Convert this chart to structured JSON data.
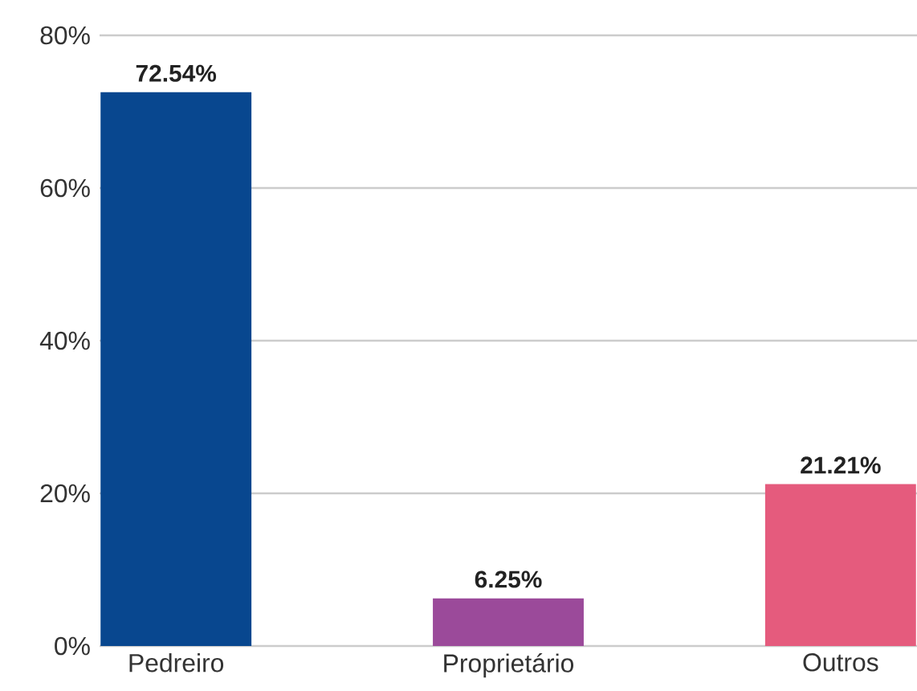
{
  "chart_data": {
    "type": "bar",
    "categories": [
      "Pedreiro",
      "Proprietário",
      "Outros"
    ],
    "values": [
      72.54,
      6.25,
      21.21
    ],
    "colors": [
      "#08478f",
      "#9b4a9a",
      "#e55b7d"
    ],
    "value_labels": [
      "72.54%",
      "6.25%",
      "21.21%"
    ],
    "ylim": [
      0,
      80
    ],
    "yticks": [
      {
        "value": 0,
        "label": "0%"
      },
      {
        "value": 20,
        "label": "20%"
      },
      {
        "value": 40,
        "label": "40%"
      },
      {
        "value": 60,
        "label": "60%"
      },
      {
        "value": 80,
        "label": "80%"
      }
    ],
    "grid": "y"
  }
}
